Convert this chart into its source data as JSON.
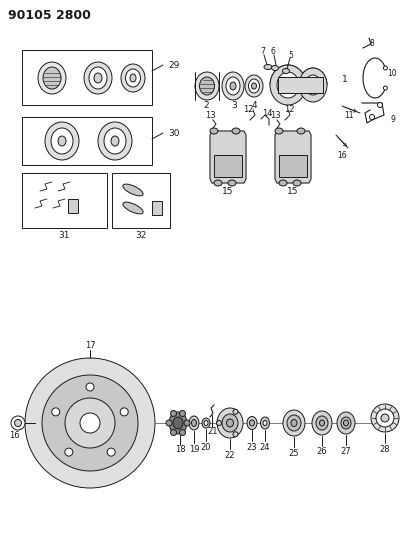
{
  "title": "90105 2800",
  "bg_color": "#ffffff",
  "line_color": "#1a1a1a",
  "title_fontsize": 9,
  "label_fontsize": 6.5,
  "fig_width": 4.03,
  "fig_height": 5.33
}
